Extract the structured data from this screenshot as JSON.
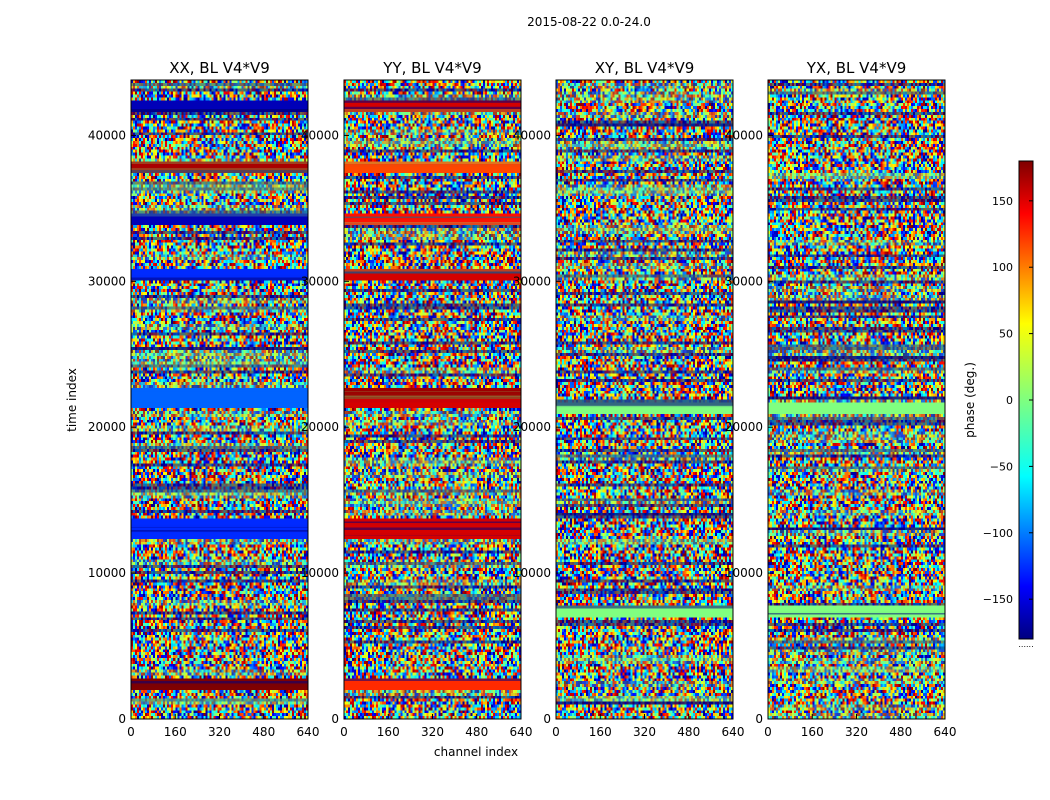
{
  "figure": {
    "title": "2015-08-22 0.0-24.0"
  },
  "chart_data": [
    {
      "type": "heatmap",
      "title": "XX, BL V4*V9",
      "xlabel": "",
      "ylabel": "time index",
      "xlim": [
        0,
        640
      ],
      "ylim": [
        0,
        43800
      ],
      "xticks": [
        0,
        160,
        320,
        480,
        640
      ],
      "yticks": [
        0,
        10000,
        20000,
        30000,
        40000
      ],
      "value_unit": "phase (deg.)",
      "highlight_bands": [
        {
          "time": 2300,
          "phase": 180
        },
        {
          "time": 12700,
          "phase": -120
        },
        {
          "time": 13300,
          "phase": -120
        },
        {
          "time": 21800,
          "phase": -100
        },
        {
          "time": 22300,
          "phase": -100
        },
        {
          "time": 30400,
          "phase": -120
        },
        {
          "time": 34200,
          "phase": -160
        },
        {
          "time": 37900,
          "phase": 165
        },
        {
          "time": 42100,
          "phase": -160
        }
      ]
    },
    {
      "type": "heatmap",
      "title": "YY, BL V4*V9",
      "xlabel": "channel index",
      "ylabel": "",
      "xlim": [
        0,
        640
      ],
      "ylim": [
        0,
        43800
      ],
      "xticks": [
        0,
        160,
        320,
        480,
        640
      ],
      "yticks": [
        0,
        10000,
        20000,
        30000,
        40000
      ],
      "value_unit": "phase (deg.)",
      "highlight_bands": [
        {
          "time": 2300,
          "phase": 120
        },
        {
          "time": 12700,
          "phase": 150
        },
        {
          "time": 13300,
          "phase": 150
        },
        {
          "time": 21800,
          "phase": 150
        },
        {
          "time": 22300,
          "phase": 170
        },
        {
          "time": 30400,
          "phase": 150
        },
        {
          "time": 34200,
          "phase": 130
        },
        {
          "time": 37900,
          "phase": 110
        },
        {
          "time": 42100,
          "phase": 150
        }
      ]
    },
    {
      "type": "heatmap",
      "title": "XY, BL V4*V9",
      "xlabel": "",
      "ylabel": "",
      "xlim": [
        0,
        640
      ],
      "ylim": [
        0,
        43800
      ],
      "xticks": [
        0,
        160,
        320,
        480,
        640
      ],
      "yticks": [
        0,
        10000,
        20000,
        30000,
        40000
      ],
      "value_unit": "phase (deg.)",
      "highlight_bands": [
        {
          "time": 7400,
          "phase": 0
        },
        {
          "time": 21300,
          "phase": 0
        }
      ]
    },
    {
      "type": "heatmap",
      "title": "YX, BL V4*V9",
      "xlabel": "",
      "ylabel": "",
      "xlim": [
        0,
        640
      ],
      "ylim": [
        0,
        43800
      ],
      "xticks": [
        0,
        160,
        320,
        480,
        640
      ],
      "yticks": [
        0,
        10000,
        20000,
        30000,
        40000
      ],
      "value_unit": "phase (deg.)",
      "highlight_bands": [
        {
          "time": 7400,
          "phase": 0
        },
        {
          "time": 21300,
          "phase": 0
        }
      ]
    }
  ],
  "colorbar": {
    "label": "phase (deg.)",
    "range": [
      -180,
      180
    ],
    "ticks": [
      -150,
      -100,
      -50,
      0,
      50,
      100,
      150
    ],
    "tick_labels": [
      "−150",
      "−100",
      "−50",
      "0",
      "50",
      "100",
      "150"
    ],
    "colormap": "jet",
    "under_label": "......"
  },
  "colors": {
    "background": "#ffffff",
    "axis": "#000000"
  }
}
